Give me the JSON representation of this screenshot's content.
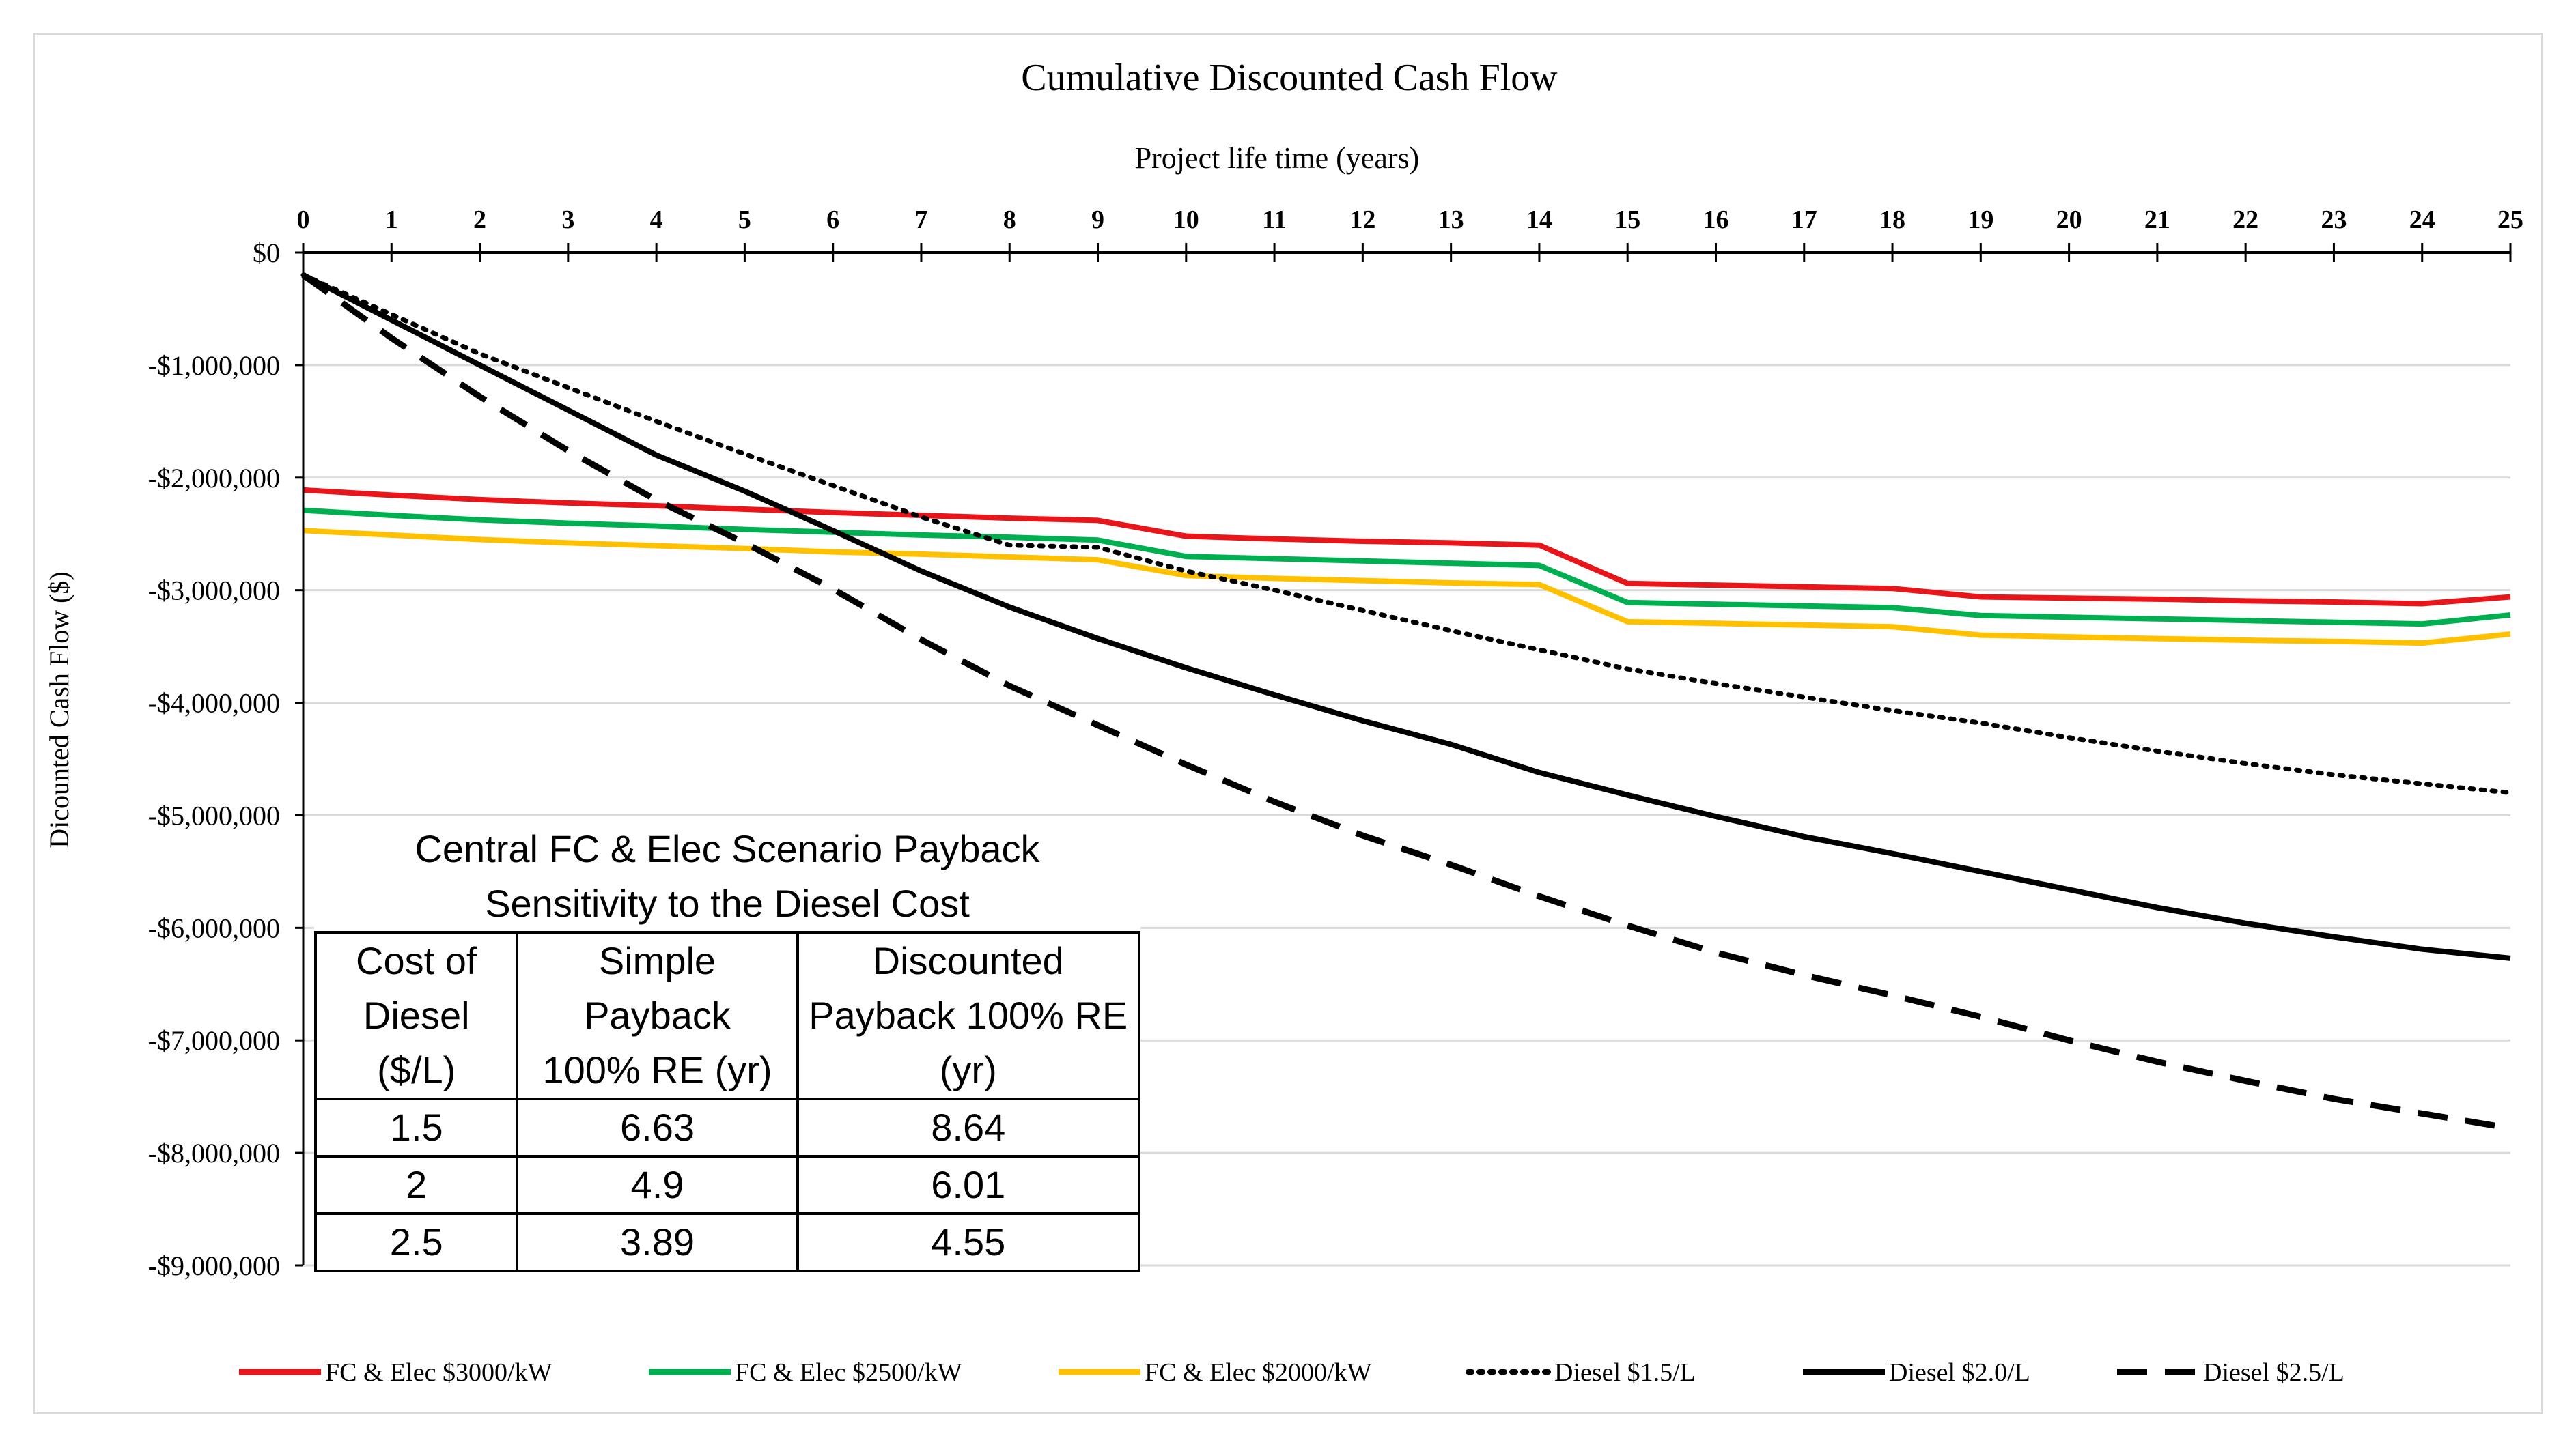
{
  "chart_data": {
    "type": "line",
    "title": "Cumulative Discounted Cash Flow",
    "xlabel": "Project life time (years)",
    "ylabel": "Dicounted Cash Flow ($)",
    "x": [
      0,
      1,
      2,
      3,
      4,
      5,
      6,
      7,
      8,
      9,
      10,
      11,
      12,
      13,
      14,
      15,
      16,
      17,
      18,
      19,
      20,
      21,
      22,
      23,
      24,
      25
    ],
    "xlim": [
      0,
      25
    ],
    "ylim": [
      -9000000,
      0
    ],
    "yticks": [
      0,
      -1000000,
      -2000000,
      -3000000,
      -4000000,
      -5000000,
      -6000000,
      -7000000,
      -8000000,
      -9000000
    ],
    "ytick_labels": [
      "$0",
      "-$1,000,000",
      "-$2,000,000",
      "-$3,000,000",
      "-$4,000,000",
      "-$5,000,000",
      "-$6,000,000",
      "-$7,000,000",
      "-$8,000,000",
      "-$9,000,000"
    ],
    "x_axis_position": "top",
    "grid": "horizontal",
    "legend_position": "bottom",
    "series": [
      {
        "name": "FC & Elec $3000/kW",
        "color": "#e8161b",
        "dash": "solid",
        "values": [
          -2110000,
          -2155000,
          -2195000,
          -2225000,
          -2250000,
          -2280000,
          -2310000,
          -2335000,
          -2360000,
          -2380000,
          -2520000,
          -2545000,
          -2565000,
          -2580000,
          -2600000,
          -2940000,
          -2955000,
          -2970000,
          -2985000,
          -3060000,
          -3070000,
          -3080000,
          -3095000,
          -3105000,
          -3120000,
          -3060000
        ]
      },
      {
        "name": "FC & Elec $2500/kW",
        "color": "#00b050",
        "dash": "solid",
        "values": [
          -2290000,
          -2335000,
          -2375000,
          -2405000,
          -2430000,
          -2460000,
          -2485000,
          -2510000,
          -2530000,
          -2555000,
          -2700000,
          -2720000,
          -2740000,
          -2760000,
          -2780000,
          -3110000,
          -3125000,
          -3140000,
          -3155000,
          -3225000,
          -3240000,
          -3255000,
          -3270000,
          -3285000,
          -3300000,
          -3220000
        ]
      },
      {
        "name": "FC & Elec $2000/kW",
        "color": "#ffc000",
        "dash": "solid",
        "values": [
          -2470000,
          -2510000,
          -2550000,
          -2580000,
          -2605000,
          -2630000,
          -2660000,
          -2680000,
          -2705000,
          -2730000,
          -2870000,
          -2895000,
          -2915000,
          -2935000,
          -2950000,
          -3280000,
          -3295000,
          -3310000,
          -3325000,
          -3400000,
          -3415000,
          -3430000,
          -3445000,
          -3455000,
          -3470000,
          -3390000
        ]
      },
      {
        "name": "Diesel $1.5/L",
        "color": "#000000",
        "dash": "dotted",
        "values": [
          -200000,
          -550000,
          -900000,
          -1200000,
          -1500000,
          -1790000,
          -2070000,
          -2350000,
          -2600000,
          -2620000,
          -2830000,
          -3000000,
          -3180000,
          -3360000,
          -3530000,
          -3700000,
          -3830000,
          -3950000,
          -4070000,
          -4180000,
          -4310000,
          -4430000,
          -4540000,
          -4640000,
          -4720000,
          -4800000
        ]
      },
      {
        "name": "Diesel $2.0/L",
        "color": "#000000",
        "dash": "solid",
        "values": [
          -200000,
          -600000,
          -1000000,
          -1400000,
          -1800000,
          -2120000,
          -2470000,
          -2830000,
          -3150000,
          -3430000,
          -3690000,
          -3930000,
          -4160000,
          -4370000,
          -4620000,
          -4820000,
          -5010000,
          -5190000,
          -5340000,
          -5500000,
          -5660000,
          -5820000,
          -5960000,
          -6080000,
          -6190000,
          -6270000
        ]
      },
      {
        "name": "Diesel $2.5/L",
        "color": "#000000",
        "dash": "dashed",
        "values": [
          -200000,
          -760000,
          -1280000,
          -1760000,
          -2200000,
          -2580000,
          -2990000,
          -3440000,
          -3850000,
          -4200000,
          -4550000,
          -4880000,
          -5180000,
          -5440000,
          -5720000,
          -5980000,
          -6220000,
          -6420000,
          -6600000,
          -6790000,
          -7000000,
          -7190000,
          -7360000,
          -7520000,
          -7650000,
          -7780000
        ]
      }
    ]
  },
  "payback_table": {
    "title_line1": "Central FC & Elec Scenario Payback",
    "title_line2": "Sensitivity to the Diesel Cost",
    "headers": [
      [
        "Cost of",
        "Diesel",
        "($/L)"
      ],
      [
        "Simple",
        "Payback",
        "100% RE (yr)"
      ],
      [
        "Discounted",
        "Payback 100% RE",
        "(yr)"
      ]
    ],
    "rows": [
      [
        "1.5",
        "6.63",
        "8.64"
      ],
      [
        "2",
        "4.9",
        "6.01"
      ],
      [
        "2.5",
        "3.89",
        "4.55"
      ]
    ]
  }
}
